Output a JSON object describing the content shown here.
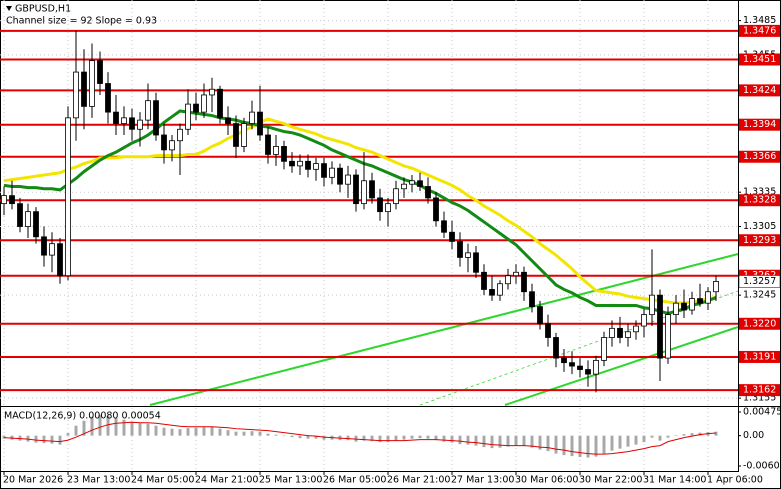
{
  "chart_data": {
    "type": "candlestick",
    "title": "GBPUSD,H1",
    "subtitle": "Channel size = 92 Slope = 0.93",
    "categories": [
      "20 Mar 2026",
      null,
      null,
      null,
      null,
      null,
      null,
      null,
      "23 Mar 13:00",
      null,
      null,
      null,
      null,
      null,
      null,
      null,
      "24 Mar 05:00",
      null,
      null,
      null,
      null,
      null,
      null,
      null,
      "24 Mar 21:00",
      null,
      null,
      null,
      null,
      null,
      null,
      null,
      "25 Mar 13:00",
      null,
      null,
      null,
      null,
      null,
      null,
      null,
      "26 Mar 05:00",
      null,
      null,
      null,
      null,
      null,
      null,
      null,
      "26 Mar 21:00",
      null,
      null,
      null,
      null,
      null,
      null,
      null,
      "27 Mar 13:00",
      null,
      null,
      null,
      null,
      null,
      null,
      null,
      "30 Mar 06:00",
      null,
      null,
      null,
      null,
      null,
      null,
      null,
      "30 Mar 22:00",
      null,
      null,
      null,
      null,
      null,
      null,
      null,
      "31 Mar 14:00",
      null,
      null,
      null,
      null,
      null,
      null,
      null,
      "1 Apr 06:00",
      null
    ],
    "ohlc": [
      [
        1.3325,
        1.334,
        1.3315,
        1.3332
      ],
      [
        1.3332,
        1.3345,
        1.332,
        1.3325
      ],
      [
        1.3325,
        1.333,
        1.33,
        1.3305
      ],
      [
        1.3305,
        1.3325,
        1.3295,
        1.3318
      ],
      [
        1.3318,
        1.3322,
        1.329,
        1.3296
      ],
      [
        1.3296,
        1.3305,
        1.327,
        1.328
      ],
      [
        1.328,
        1.33,
        1.3265,
        1.329
      ],
      [
        1.329,
        1.3295,
        1.3255,
        1.3262
      ],
      [
        1.3262,
        1.341,
        1.3258,
        1.34
      ],
      [
        1.34,
        1.3476,
        1.338,
        1.344
      ],
      [
        1.344,
        1.346,
        1.339,
        1.341
      ],
      [
        1.341,
        1.3465,
        1.34,
        1.345
      ],
      [
        1.345,
        1.3458,
        1.342,
        1.343
      ],
      [
        1.343,
        1.344,
        1.3395,
        1.3405
      ],
      [
        1.3405,
        1.342,
        1.3385,
        1.3395
      ],
      [
        1.3395,
        1.341,
        1.3385,
        1.34
      ],
      [
        1.34,
        1.3408,
        1.338,
        1.339
      ],
      [
        1.339,
        1.3405,
        1.3375,
        1.3398
      ],
      [
        1.3398,
        1.343,
        1.339,
        1.3415
      ],
      [
        1.3415,
        1.3422,
        1.338,
        1.3385
      ],
      [
        1.3385,
        1.3395,
        1.336,
        1.3372
      ],
      [
        1.3372,
        1.3385,
        1.3362,
        1.338
      ],
      [
        1.338,
        1.3395,
        1.335,
        1.339
      ],
      [
        1.339,
        1.3425,
        1.3385,
        1.3412
      ],
      [
        1.3412,
        1.3422,
        1.3398,
        1.3405
      ],
      [
        1.3405,
        1.343,
        1.34,
        1.342
      ],
      [
        1.342,
        1.3435,
        1.3405,
        1.3425
      ],
      [
        1.3425,
        1.3428,
        1.3395,
        1.34
      ],
      [
        1.34,
        1.341,
        1.3385,
        1.3395
      ],
      [
        1.3395,
        1.3402,
        1.3365,
        1.3375
      ],
      [
        1.3375,
        1.34,
        1.337,
        1.3395
      ],
      [
        1.3395,
        1.3415,
        1.339,
        1.3405
      ],
      [
        1.3405,
        1.3428,
        1.338,
        1.3385
      ],
      [
        1.3385,
        1.3392,
        1.336,
        1.3368
      ],
      [
        1.3368,
        1.3385,
        1.3358,
        1.3375
      ],
      [
        1.3375,
        1.338,
        1.3355,
        1.3362
      ],
      [
        1.3362,
        1.337,
        1.3352,
        1.3358
      ],
      [
        1.3358,
        1.3368,
        1.335,
        1.3362
      ],
      [
        1.3362,
        1.3368,
        1.3348,
        1.3355
      ],
      [
        1.3355,
        1.3365,
        1.3345,
        1.336
      ],
      [
        1.336,
        1.3365,
        1.334,
        1.3348
      ],
      [
        1.3348,
        1.3362,
        1.3342,
        1.3356
      ],
      [
        1.3356,
        1.336,
        1.3335,
        1.3342
      ],
      [
        1.3342,
        1.3358,
        1.333,
        1.335
      ],
      [
        1.335,
        1.3355,
        1.3318,
        1.3325
      ],
      [
        1.3325,
        1.337,
        1.332,
        1.3345
      ],
      [
        1.3345,
        1.3352,
        1.3325,
        1.333
      ],
      [
        1.333,
        1.3338,
        1.331,
        1.3318
      ],
      [
        1.3318,
        1.333,
        1.3305,
        1.3325
      ],
      [
        1.3325,
        1.3345,
        1.332,
        1.3338
      ],
      [
        1.3338,
        1.3348,
        1.333,
        1.3342
      ],
      [
        1.3342,
        1.335,
        1.3335,
        1.3345
      ],
      [
        1.3345,
        1.3352,
        1.3336,
        1.334
      ],
      [
        1.334,
        1.3348,
        1.3325,
        1.333
      ],
      [
        1.333,
        1.3335,
        1.3305,
        1.331
      ],
      [
        1.331,
        1.3318,
        1.3295,
        1.33
      ],
      [
        1.33,
        1.331,
        1.3285,
        1.3292
      ],
      [
        1.3292,
        1.33,
        1.327,
        1.3278
      ],
      [
        1.3278,
        1.329,
        1.3265,
        1.3282
      ],
      [
        1.3282,
        1.3288,
        1.326,
        1.3265
      ],
      [
        1.3265,
        1.3272,
        1.3245,
        1.325
      ],
      [
        1.325,
        1.3262,
        1.324,
        1.3245
      ],
      [
        1.3245,
        1.3258,
        1.324,
        1.3255
      ],
      [
        1.3255,
        1.3268,
        1.325,
        1.3262
      ],
      [
        1.3262,
        1.3272,
        1.3255,
        1.3265
      ],
      [
        1.3265,
        1.327,
        1.324,
        1.3248
      ],
      [
        1.3248,
        1.3255,
        1.323,
        1.3235
      ],
      [
        1.3235,
        1.324,
        1.3215,
        1.322
      ],
      [
        1.322,
        1.3228,
        1.32,
        1.3208
      ],
      [
        1.3208,
        1.3212,
        1.3182,
        1.319
      ],
      [
        1.319,
        1.3198,
        1.3178,
        1.3186
      ],
      [
        1.3186,
        1.3196,
        1.3176,
        1.3183
      ],
      [
        1.3183,
        1.319,
        1.3173,
        1.318
      ],
      [
        1.318,
        1.3188,
        1.3165,
        1.3176
      ],
      [
        1.3176,
        1.3192,
        1.316,
        1.3188
      ],
      [
        1.3188,
        1.3213,
        1.3183,
        1.3208
      ],
      [
        1.3208,
        1.3223,
        1.32,
        1.3216
      ],
      [
        1.3216,
        1.3226,
        1.3203,
        1.3208
      ],
      [
        1.3208,
        1.322,
        1.32,
        1.3213
      ],
      [
        1.3213,
        1.3223,
        1.3206,
        1.3218
      ],
      [
        1.3218,
        1.3233,
        1.3208,
        1.3228
      ],
      [
        1.3228,
        1.3285,
        1.3218,
        1.3245
      ],
      [
        1.3245,
        1.325,
        1.317,
        1.319
      ],
      [
        1.319,
        1.3235,
        1.3185,
        1.3228
      ],
      [
        1.3228,
        1.3245,
        1.322,
        1.3238
      ],
      [
        1.3238,
        1.325,
        1.3225,
        1.3232
      ],
      [
        1.3232,
        1.3248,
        1.3228,
        1.3242
      ],
      [
        1.3242,
        1.3255,
        1.3235,
        1.3238
      ],
      [
        1.3238,
        1.3252,
        1.3232,
        1.3248
      ],
      [
        1.3248,
        1.3262,
        1.324,
        1.3257
      ]
    ],
    "color_up": "#ffffff",
    "color_down": "#000000",
    "series": [
      {
        "color": "#f2e600",
        "values": [
          1.3345,
          1.3346,
          1.3347,
          1.3348,
          1.3349,
          1.335,
          1.3351,
          1.3352,
          1.3355,
          1.3357,
          1.336,
          1.3362,
          1.3365,
          1.3365,
          1.3365,
          1.3366,
          1.3366,
          1.3366,
          1.3366,
          1.3367,
          1.3367,
          1.3367,
          1.3367,
          1.3368,
          1.3368,
          1.3371,
          1.3375,
          1.3378,
          1.3382,
          1.3385,
          1.3389,
          1.3392,
          1.3396,
          1.3399,
          1.3397,
          1.3395,
          1.3392,
          1.339,
          1.3388,
          1.3386,
          1.3383,
          1.3381,
          1.3379,
          1.3377,
          1.3374,
          1.3372,
          1.337,
          1.3367,
          1.3364,
          1.3361,
          1.3358,
          1.3356,
          1.3353,
          1.335,
          1.3347,
          1.3344,
          1.3341,
          1.3337,
          1.3332,
          1.3328,
          1.3323,
          1.3319,
          1.3315,
          1.331,
          1.3306,
          1.3301,
          1.3296,
          1.329,
          1.3285,
          1.328,
          1.3274,
          1.3268,
          1.3261,
          1.3255,
          1.3249,
          1.3248,
          1.3247,
          1.3246,
          1.3244,
          1.3243,
          1.3242,
          1.3241,
          1.324,
          1.3239,
          1.3238,
          1.3238,
          1.3239,
          1.324,
          1.3242,
          1.3243
        ]
      },
      {
        "color": "#138a13",
        "values": [
          1.3341,
          1.334,
          1.334,
          1.3339,
          1.3339,
          1.3338,
          1.3338,
          1.3337,
          1.3342,
          1.3347,
          1.3353,
          1.3358,
          1.3363,
          1.3367,
          1.337,
          1.3374,
          1.3378,
          1.3381,
          1.3385,
          1.339,
          1.3396,
          1.3401,
          1.3406,
          1.3405,
          1.3404,
          1.3403,
          1.3402,
          1.34,
          1.3399,
          1.3398,
          1.3396,
          1.3395,
          1.3393,
          1.3392,
          1.339,
          1.3388,
          1.3387,
          1.3385,
          1.3382,
          1.3379,
          1.3376,
          1.3372,
          1.3369,
          1.3366,
          1.3363,
          1.336,
          1.3358,
          1.3355,
          1.3352,
          1.3349,
          1.3346,
          1.3344,
          1.3341,
          1.3337,
          1.3334,
          1.333,
          1.3326,
          1.3323,
          1.3319,
          1.3314,
          1.3309,
          1.3304,
          1.3299,
          1.3294,
          1.3289,
          1.3282,
          1.3275,
          1.3268,
          1.3261,
          1.3254,
          1.325,
          1.3247,
          1.3243,
          1.324,
          1.3236,
          1.3236,
          1.3236,
          1.3236,
          1.3236,
          1.3236,
          1.3234,
          1.3233,
          1.3231,
          1.3229,
          1.3231,
          1.3233,
          1.3236,
          1.3238,
          1.324,
          1.3243
        ]
      }
    ],
    "ylim": [
      1.3149,
      1.3503
    ],
    "yticks": [
      1.3485,
      1.3455,
      1.3335,
      1.3305,
      1.3245,
      1.3155
    ],
    "grid": true,
    "levels": [
      1.3476,
      1.3451,
      1.3424,
      1.3394,
      1.3366,
      1.3328,
      1.3293,
      1.3262,
      {
        "value": 1.322,
        "label": "1.3220"
      },
      1.3191,
      1.3162
    ],
    "level_color": "#e00000",
    "macd": {
      "title": "MACD(12,26,9) 0.00080 0.00054",
      "histogram": [
        -0.0006,
        -0.0008,
        -0.001,
        -0.0012,
        -0.0014,
        -0.0015,
        -0.0016,
        -0.0018,
        0.0005,
        0.002,
        0.003,
        0.0038,
        0.0042,
        0.004,
        0.0036,
        0.0032,
        0.0028,
        0.0025,
        0.0024,
        0.002,
        0.0016,
        0.0014,
        0.0013,
        0.0015,
        0.0016,
        0.0017,
        0.0018,
        0.0014,
        0.0011,
        0.0008,
        0.0008,
        0.0009,
        0.0008,
        0.0004,
        0.0002,
        -0.0001,
        -0.0003,
        -0.0005,
        -0.0006,
        -0.0006,
        -0.0008,
        -0.0008,
        -0.0009,
        -0.0009,
        -0.0012,
        -0.001,
        -0.0011,
        -0.0013,
        -0.0013,
        -0.001,
        -0.0008,
        -0.0006,
        -0.0005,
        -0.0006,
        -0.0009,
        -0.0012,
        -0.0014,
        -0.0017,
        -0.0018,
        -0.002,
        -0.0023,
        -0.0025,
        -0.0024,
        -0.0022,
        -0.002,
        -0.0021,
        -0.0024,
        -0.0028,
        -0.0031,
        -0.0036,
        -0.0039,
        -0.0041,
        -0.0043,
        -0.0044,
        -0.0042,
        -0.0036,
        -0.003,
        -0.0026,
        -0.0022,
        -0.0018,
        -0.0013,
        -0.0004,
        -0.001,
        -0.0004,
        0.0001,
        0.0003,
        0.0005,
        0.0006,
        0.0007,
        0.0008
      ],
      "signal": [
        -0.0004,
        -0.0005,
        -0.0006,
        -0.0007,
        -0.0009,
        -0.001,
        -0.0011,
        -0.0012,
        -0.0009,
        -0.0003,
        0.0004,
        0.0011,
        0.0017,
        0.0022,
        0.0025,
        0.0026,
        0.0027,
        0.0026,
        0.0026,
        0.0025,
        0.0023,
        0.0021,
        0.0019,
        0.0018,
        0.0018,
        0.0018,
        0.0018,
        0.0017,
        0.0016,
        0.0014,
        0.0013,
        0.0012,
        0.0011,
        0.001,
        0.0008,
        0.0006,
        0.0004,
        0.0002,
        0.0,
        -0.0001,
        -0.0003,
        -0.0004,
        -0.0005,
        -0.0006,
        -0.0007,
        -0.0008,
        -0.0009,
        -0.001,
        -0.001,
        -0.001,
        -0.001,
        -0.0009,
        -0.0008,
        -0.0008,
        -0.0008,
        -0.0009,
        -0.001,
        -0.0011,
        -0.0013,
        -0.0014,
        -0.0016,
        -0.0018,
        -0.0019,
        -0.002,
        -0.002,
        -0.002,
        -0.0021,
        -0.0023,
        -0.0024,
        -0.0027,
        -0.0029,
        -0.0032,
        -0.0034,
        -0.0036,
        -0.0037,
        -0.0037,
        -0.0036,
        -0.0034,
        -0.0032,
        -0.0029,
        -0.0026,
        -0.0022,
        -0.002,
        -0.0012,
        -0.0008,
        -0.0004,
        -0.0001,
        0.0002,
        0.0004,
        0.00054
      ],
      "ylim": [
        -0.00609,
        0.00475
      ],
      "yticks": [
        0.00475,
        {
          "value": 0,
          "label": "0.00"
        },
        -0.00609
      ],
      "hist_color": "#a8a8a8",
      "signal_color": "#e00000"
    }
  }
}
